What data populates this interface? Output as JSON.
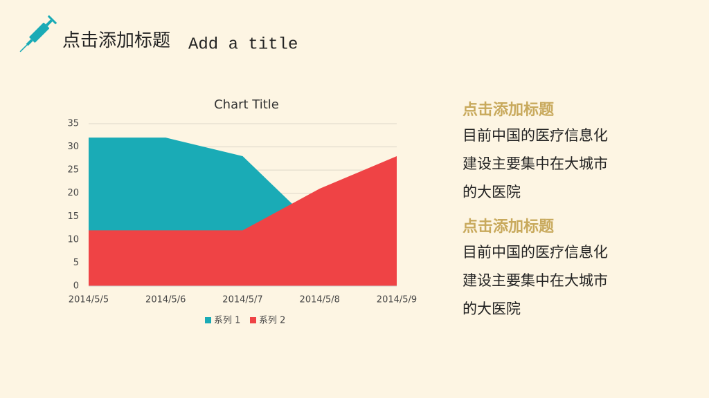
{
  "header": {
    "title": "点击添加标题",
    "subtitle": "Add a title"
  },
  "chart_data": {
    "type": "area",
    "title": "Chart Title",
    "categories": [
      "2014/5/5",
      "2014/5/6",
      "2014/5/7",
      "2014/5/8",
      "2014/5/9"
    ],
    "series": [
      {
        "name": "系列 1",
        "color": "#1aabb6",
        "values": [
          32,
          32,
          28,
          12,
          12
        ]
      },
      {
        "name": "系列 2",
        "color": "#ef4345",
        "values": [
          12,
          12,
          12,
          21,
          28
        ]
      }
    ],
    "ylim": [
      0,
      35
    ],
    "yticks": [
      0,
      5,
      10,
      15,
      20,
      25,
      30,
      35
    ],
    "grid": true,
    "legend": "bottom"
  },
  "sections": [
    {
      "heading": "点击添加标题",
      "lines": [
        "目前中国的医疗信息化",
        "建设主要集中在大城市",
        "的大医院"
      ]
    },
    {
      "heading": "点击添加标题",
      "lines": [
        "目前中国的医疗信息化",
        "建设主要集中在大城市",
        "的大医院"
      ]
    }
  ]
}
